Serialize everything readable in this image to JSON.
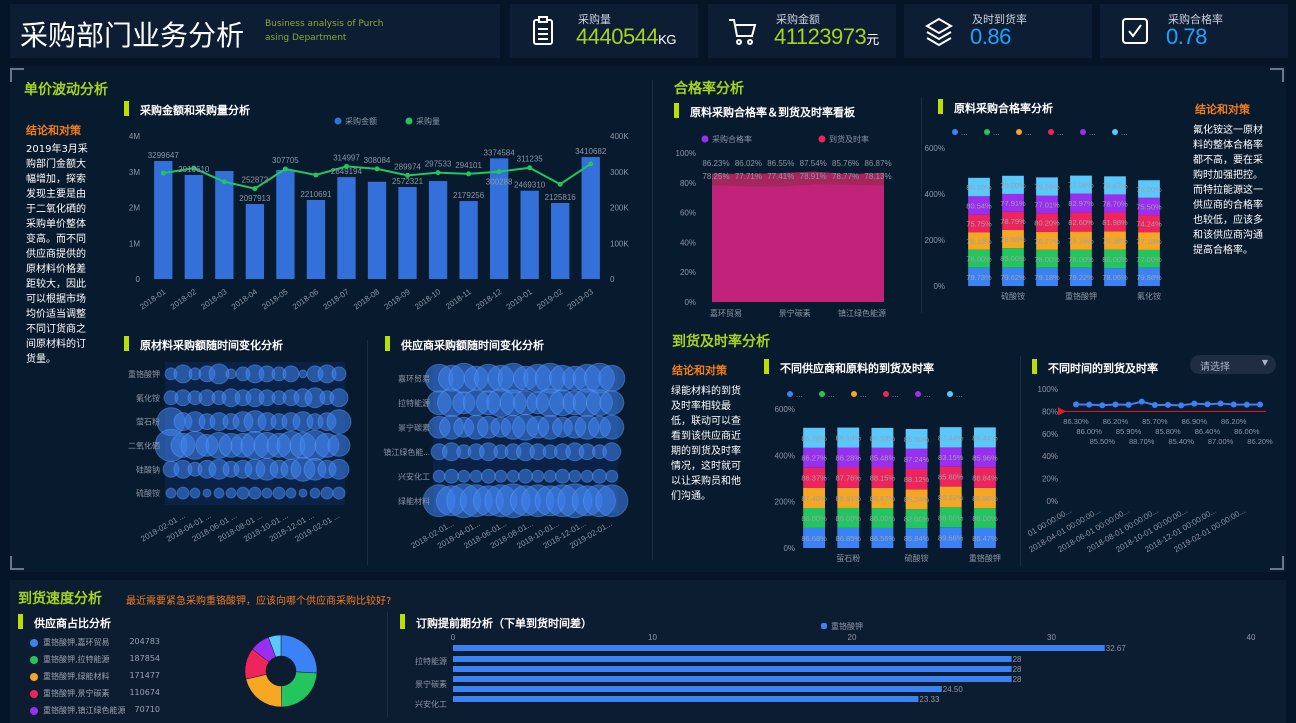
{
  "header": {
    "title": "采购部门业务分析",
    "subtitle": "Business analysis of Purchasing Department",
    "kpis": [
      {
        "label": "采购量",
        "value": "4440544",
        "unit": "KG",
        "icon": "clipboard-icon",
        "color": "#a6d31f"
      },
      {
        "label": "采购金额",
        "value": "41123973",
        "unit": "元",
        "icon": "cart-icon",
        "color": "#a6d31f"
      },
      {
        "label": "及时到货率",
        "value": "0.86",
        "unit": "",
        "icon": "layers-icon",
        "color": "#1aa3ff"
      },
      {
        "label": "采购合格率",
        "value": "0.78",
        "unit": "",
        "icon": "checkbox-icon",
        "color": "#1aa3ff"
      }
    ]
  },
  "price": {
    "title": "单价波动分析",
    "conclusion_title": "结论和对策",
    "conclusion": "2019年3月采购部门金额大幅增加，探索发现主要是由于二氧化硒的采购单价整体变高。而不同供应商提供的原材料价格差距较大，因此可以根据市场均价适当调整不同订货商之间原材料的订货量。",
    "chart1_title": "采购金额和采购量分析",
    "chart2_title": "原材料采购额随时间变化分析",
    "chart3_title": "供应商采购额随时间变化分析"
  },
  "quality": {
    "title": "合格率分析",
    "chart1_title": "原料采购合格率＆到货及时率看板",
    "chart2_title": "原料采购合格率分析",
    "conclusion_title": "结论和对策",
    "conclusion": "氟化铵这一原材料的整体合格率都不高，要在采购时加强把控。而特拉能源这一供应商的合格率也较低，应该多和该供应商沟通提高合格率。"
  },
  "arrival": {
    "title": "到货及时率分析",
    "conclusion_title": "结论和对策",
    "conclusion": "绿能材料的到货及时率相较最低，联动可以查看到该供应商近期的到货及时率情况，这时就可以让采购员和他们沟通。",
    "chart1_title": "不同供应商和原料的到货及时率",
    "chart2_title": "不同时间的到货及时率",
    "select_placeholder": "请选择"
  },
  "speed": {
    "title": "到货速度分析",
    "question": "最近需要紧急采购重铬酸钾，应该向哪个供应商采购比较好?",
    "chart1_title": "供应商占比分析",
    "chart2_title": "订购提前期分析（下单到货时间差）"
  },
  "chart_data": [
    {
      "id": "amount_qty",
      "type": "bar+line",
      "title": "采购金额和采购量分析",
      "categories": [
        "2018-01",
        "2018-02",
        "2018-03",
        "2018-04",
        "2018-05",
        "2018-06",
        "2018-07",
        "2018-08",
        "2018-09",
        "2018-10",
        "2018-11",
        "2018-12",
        "2019-01",
        "2019-02",
        "2019-03"
      ],
      "series": [
        {
          "name": "采购金额",
          "type": "bar",
          "axis": "left",
          "color": "#3370d9",
          "values": [
            3299647,
            2910610,
            3020000,
            2097913,
            3050000,
            2210691,
            2849194,
            2720000,
            2572321,
            2740000,
            2179256,
            3374584,
            2469310,
            2125816,
            3410682
          ],
          "labels": [
            "3299647",
            "2910610",
            "",
            "2097913",
            "",
            "2210691",
            "2849194",
            "",
            "2572321",
            "",
            "2179256",
            "3374584",
            "2469310",
            "2125816",
            "3410682"
          ]
        },
        {
          "name": "采购量",
          "type": "line",
          "axis": "right",
          "color": "#22c55e",
          "values": [
            296000,
            310000,
            272000,
            252872,
            307705,
            291000,
            314997,
            308084,
            289974,
            297533,
            294101,
            300288,
            311235,
            265000,
            322000
          ],
          "labels": [
            "",
            "",
            "",
            "252872",
            "307705",
            "",
            "314997",
            "308084",
            "289974",
            "297533",
            "294101",
            "300288",
            "311235",
            "",
            ""
          ]
        }
      ],
      "yleft": {
        "min": 0,
        "max": 4000000,
        "ticks": [
          "0",
          "1M",
          "2M",
          "3M",
          "4M"
        ]
      },
      "yright": {
        "min": 0,
        "max": 400000,
        "ticks": [
          "0",
          "100K",
          "200K",
          "300K",
          "400K"
        ]
      }
    },
    {
      "id": "material_bubble",
      "type": "scatter",
      "title": "原材料采购额随时间变化分析",
      "rows": [
        "重铬酸钾",
        "氟化铵",
        "萤石粉",
        "二氧化硒",
        "硅酸钠",
        "硫酸铵"
      ],
      "xticks": [
        "2018-02-01 ...",
        "2018-04-01 ...",
        "2018-06-01 ...",
        "2018-08-01 ...",
        "2018-10-01 ...",
        "2018-12-01 ...",
        "2019-02-01 ..."
      ],
      "sizes": [
        [
          6,
          9,
          6,
          8,
          10,
          5,
          7,
          9,
          8,
          7,
          8,
          4,
          8,
          9,
          7
        ],
        [
          7,
          8,
          7,
          8,
          7,
          9,
          8,
          9,
          8,
          7,
          8,
          9,
          10,
          7,
          9
        ],
        [
          14,
          9,
          10,
          8,
          9,
          8,
          10,
          11,
          9,
          8,
          9,
          10,
          8,
          9,
          12
        ],
        [
          16,
          12,
          14,
          11,
          13,
          12,
          12,
          14,
          13,
          12,
          14,
          13,
          15,
          12,
          11
        ],
        [
          8,
          9,
          7,
          9,
          10,
          8,
          9,
          10,
          11,
          9,
          10,
          12,
          11,
          9,
          10
        ],
        [
          5,
          6,
          5,
          4,
          5,
          5,
          6,
          6,
          5,
          6,
          5,
          4,
          5,
          6,
          6
        ]
      ],
      "color": "#3f84f0"
    },
    {
      "id": "supplier_bubble",
      "type": "scatter",
      "title": "供应商采购额随时间变化分析",
      "rows": [
        "嘉环贸易",
        "拉特能源",
        "景宁碳素",
        "镇江绿色能...",
        "兴安化工",
        "绿能材料"
      ],
      "xticks": [
        "2018-02-01...",
        "2018-04-01...",
        "2018-06-01...",
        "2018-08-01...",
        "2018-10-01...",
        "2018-12-01...",
        "2019-02-01..."
      ],
      "sizes": [
        [
          14,
          13,
          15,
          12,
          14,
          13,
          15,
          12,
          14,
          15,
          13,
          12,
          14,
          15,
          13
        ],
        [
          12,
          14,
          11,
          13,
          12,
          14,
          13,
          12,
          11,
          14,
          13,
          12,
          14,
          13,
          12
        ],
        [
          11,
          12,
          10,
          12,
          11,
          10,
          12,
          13,
          11,
          12,
          10,
          11,
          12,
          11,
          12
        ],
        [
          8,
          9,
          7,
          8,
          9,
          7,
          8,
          9,
          8,
          7,
          8,
          9,
          8,
          7,
          9
        ],
        [
          6,
          7,
          6,
          6,
          7,
          6,
          6,
          7,
          6,
          6,
          7,
          6,
          6,
          7,
          6
        ],
        [
          16,
          15,
          17,
          16,
          15,
          16,
          17,
          15,
          16,
          15,
          16,
          17,
          15,
          16,
          16
        ]
      ],
      "color": "#3f84f0"
    },
    {
      "id": "quality_area",
      "type": "area",
      "title": "原料采购合格率＆到货及时率看板",
      "categories": [
        "嘉环贸易",
        "",
        "景宁碳素",
        "",
        "镇江绿色能源",
        ""
      ],
      "series": [
        {
          "name": "采购合格率",
          "color": "#9b2ff0",
          "values": [
            78.25,
            77.71,
            77.41,
            78.91,
            78.77,
            78.13
          ]
        },
        {
          "name": "到货及时率",
          "color": "#f0245c",
          "values": [
            86.23,
            86.02,
            86.55,
            87.54,
            85.76,
            86.87
          ]
        }
      ],
      "ylim": [
        0,
        100
      ],
      "yticks": [
        "0%",
        "20%",
        "40%",
        "60%",
        "80%",
        "100%"
      ]
    },
    {
      "id": "quality_stack",
      "type": "bar",
      "stacked": true,
      "title": "原料采购合格率分析",
      "categories": [
        "",
        "硫酸铵",
        "",
        "重铬酸钾",
        "",
        "氟化铵"
      ],
      "legend": [
        "...",
        "...",
        "...",
        "...",
        "...",
        "..."
      ],
      "colors": [
        "#3b82f6",
        "#22c55e",
        "#f5a623",
        "#f0245c",
        "#9b2ff0",
        "#5ac8fa"
      ],
      "stack_values": [
        [
          79.73,
          78.0,
          76.19,
          75.75,
          80.54,
          80.1
        ],
        [
          79.62,
          85.0,
          78.98,
          78.79,
          77.91,
          79.0
        ],
        [
          79.18,
          78.0,
          78.27,
          80.2,
          77.01,
          79.59
        ],
        [
          79.22,
          78.0,
          79.28,
          82.6,
          82.97,
          77.96
        ],
        [
          78.06,
          80.0,
          79.38,
          81.98,
          78.7,
          78.67
        ],
        [
          79.88,
          77.0,
          77.18,
          74.24,
          75.5,
          76.0
        ]
      ],
      "ylim": [
        0,
        600
      ],
      "yticks": [
        "0%",
        "200%",
        "400%",
        "600%"
      ]
    },
    {
      "id": "arrival_stack",
      "type": "bar",
      "stacked": true,
      "title": "不同供应商和原料的到货及时率",
      "categories": [
        "",
        "萤石粉",
        "",
        "硫酸铵",
        "",
        "重铬酸钾"
      ],
      "legend": [
        "...",
        "...",
        "...",
        "...",
        "...",
        "..."
      ],
      "colors": [
        "#3b82f6",
        "#22c55e",
        "#f5a623",
        "#f0245c",
        "#9b2ff0",
        "#5ac8fa"
      ],
      "stack_values": [
        [
          86.68,
          86.0,
          87.4,
          86.37,
          86.27,
          86.28
        ],
        [
          86.85,
          86.0,
          86.91,
          87.76,
          86.28,
          86.1
        ],
        [
          86.56,
          86.0,
          86.67,
          88.15,
          85.48,
          85.53
        ],
        [
          85.84,
          82.0,
          85.24,
          88.12,
          87.24,
          85.3
        ],
        [
          89.66,
          86.0,
          89.52,
          85.8,
          83.15,
          87.44
        ],
        [
          86.47,
          86.0,
          86.86,
          88.84,
          85.96,
          86.44
        ]
      ],
      "ylim": [
        0,
        600
      ],
      "yticks": [
        "0%",
        "200%",
        "400%",
        "600%"
      ]
    },
    {
      "id": "arrival_time",
      "type": "line",
      "title": "不同时间的到货及时率",
      "xticks": [
        "01 00:00:00...",
        "2018-04-01 00:00:00...",
        "2018-06-01 00:00:00...",
        "2018-08-01 00:00:00...",
        "2018-10-01 00:00:00...",
        "2018-12-01 00:00:00...",
        "2019-02-01 00:00:00..."
      ],
      "values": [
        86.3,
        86.0,
        85.5,
        86.2,
        85.9,
        88.7,
        85.7,
        85.8,
        85.4,
        86.9,
        86.4,
        87.0,
        86.2,
        86.0,
        86.2
      ],
      "markline": 80,
      "ylim": [
        0,
        100
      ],
      "yticks": [
        "0%",
        "20%",
        "40%",
        "60%",
        "80%",
        "100%"
      ],
      "color": "#3b82f6"
    },
    {
      "id": "supplier_pie",
      "type": "pie",
      "title": "供应商占比分析",
      "slices": [
        {
          "name": "重铬酸钾,嘉环贸易",
          "value": 204783,
          "color": "#3b82f6"
        },
        {
          "name": "重铬酸钾,拉特能源",
          "value": 187854,
          "color": "#22c55e"
        },
        {
          "name": "重铬酸钾,绿能材料",
          "value": 171477,
          "color": "#f5a623"
        },
        {
          "name": "重铬酸钾,景宁碳素",
          "value": 110674,
          "color": "#f0245c"
        },
        {
          "name": "重铬酸钾,镇江绿色能源",
          "value": 70710,
          "color": "#9b2ff0"
        },
        {
          "name": "",
          "value": 45000,
          "color": "#5ac8fa"
        }
      ]
    },
    {
      "id": "lead_time",
      "type": "bar",
      "orientation": "horizontal",
      "title": "订购提前期分析（下单到货时间差）",
      "legend": "重铬酸钾",
      "categories": [
        "",
        "拉特能源",
        "",
        "景宁碳素",
        "",
        "兴安化工"
      ],
      "values": [
        32.67,
        28,
        28,
        28,
        24.5,
        23.33
      ],
      "labels": [
        "32.67",
        "28",
        "28",
        "28",
        "24.50",
        "23.33"
      ],
      "xlim": [
        0,
        40
      ],
      "xticks": [
        "0",
        "10",
        "20",
        "30",
        "40"
      ],
      "color": "#3b82f6"
    }
  ]
}
